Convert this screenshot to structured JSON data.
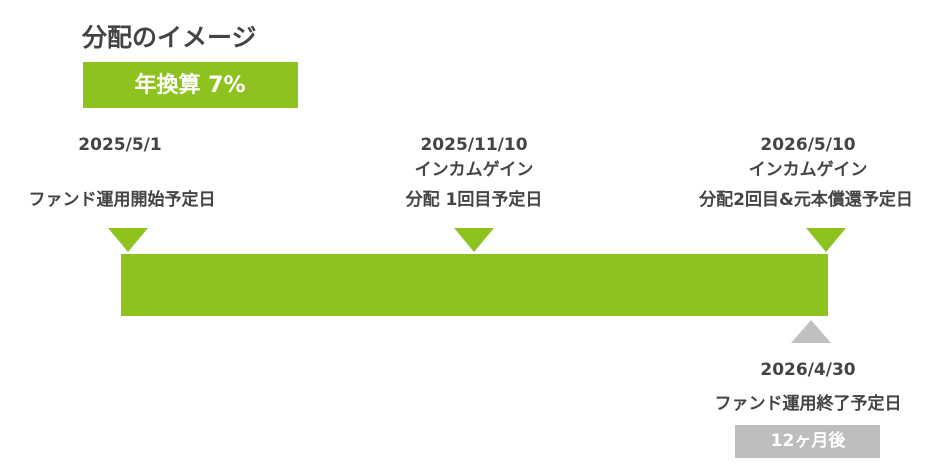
{
  "header": {
    "title": "分配のイメージ",
    "badge": "年換算 7%"
  },
  "milestones": [
    {
      "date": "2025/5/1",
      "lines": [
        "ファンド運用開始予定日"
      ]
    },
    {
      "date": "2025/11/10",
      "lines": [
        "インカムゲイン",
        "分配 1回目予定日"
      ]
    },
    {
      "date": "2026/5/10",
      "lines": [
        "インカムゲイン",
        "分配2回目&元本償還予定日"
      ]
    }
  ],
  "end": {
    "date": "2026/4/30",
    "label": "ファンド運用終了予定日",
    "duration": "12ヶ月後"
  }
}
